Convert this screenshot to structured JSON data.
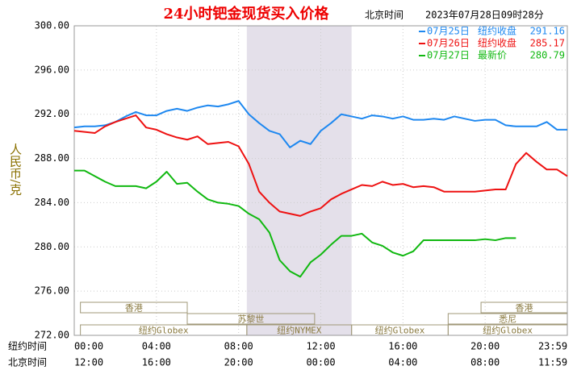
{
  "chart_data": {
    "type": "line",
    "title": "24小时钯金现货买入价格",
    "time_zone": "北京时间",
    "timestamp": "2023年07月28日09时28分",
    "y_label": "人民币/克",
    "x_row_labels": [
      "纽约时间",
      "北京时间"
    ],
    "x": [
      0,
      0.5,
      1,
      1.5,
      2,
      2.5,
      3,
      3.5,
      4,
      4.5,
      5,
      5.5,
      6,
      6.5,
      7,
      7.5,
      8,
      8.5,
      9,
      9.5,
      10,
      10.5,
      11,
      11.5,
      12,
      12.5,
      13,
      13.5,
      14,
      14.5,
      15,
      15.5,
      16,
      16.5,
      17,
      17.5,
      18,
      18.5,
      19,
      19.5,
      20,
      20.5,
      21,
      21.5,
      22,
      22.5,
      23,
      23.5,
      24
    ],
    "series": [
      {
        "name": "07月25日",
        "label": "纽约收盘",
        "value": 291.16,
        "color": "#1e88f0",
        "values": [
          290.8,
          290.9,
          290.9,
          291.0,
          291.3,
          291.8,
          292.2,
          291.9,
          291.9,
          292.3,
          292.5,
          292.3,
          292.6,
          292.8,
          292.7,
          292.9,
          293.2,
          292.0,
          291.2,
          290.5,
          290.2,
          289.0,
          289.6,
          289.3,
          290.5,
          291.2,
          292.0,
          291.8,
          291.6,
          291.9,
          291.8,
          291.6,
          291.8,
          291.5,
          291.5,
          291.6,
          291.5,
          291.8,
          291.6,
          291.4,
          291.5,
          291.5,
          291.0,
          290.9,
          290.9,
          290.9,
          291.3,
          290.6,
          290.6
        ]
      },
      {
        "name": "07月26日",
        "label": "纽约收盘",
        "value": 285.17,
        "color": "#ee1111",
        "values": [
          290.5,
          290.4,
          290.3,
          290.9,
          291.3,
          291.6,
          291.9,
          290.8,
          290.6,
          290.2,
          289.9,
          289.7,
          290.0,
          289.3,
          289.4,
          289.5,
          289.1,
          287.5,
          285.0,
          284.0,
          283.2,
          283.0,
          282.8,
          283.2,
          283.5,
          284.3,
          284.8,
          285.2,
          285.6,
          285.5,
          285.9,
          285.6,
          285.7,
          285.4,
          285.5,
          285.4,
          285.0,
          285.0,
          285.0,
          285.0,
          285.1,
          285.2,
          285.2,
          287.5,
          288.5,
          287.7,
          287.0,
          287.0,
          286.4
        ]
      },
      {
        "name": "07月27日",
        "label": "最新价",
        "value": 280.79,
        "color": "#10b810",
        "values": [
          286.9,
          286.9,
          286.4,
          285.9,
          285.5,
          285.5,
          285.5,
          285.3,
          285.9,
          286.8,
          285.7,
          285.8,
          285.0,
          284.3,
          284.0,
          283.9,
          283.7,
          283.0,
          282.5,
          281.3,
          278.8,
          277.8,
          277.3,
          278.6,
          279.3,
          280.2,
          281.0,
          281.0,
          281.2,
          280.4,
          280.1,
          279.5,
          279.2,
          279.6,
          280.6,
          280.6,
          280.6,
          280.6,
          280.6,
          280.6,
          280.7,
          280.6,
          280.8,
          280.8,
          null,
          null,
          null,
          null,
          null
        ]
      }
    ],
    "xlim": [
      0,
      24
    ],
    "xticks": [
      {
        "value": 0,
        "label": "00:00"
      },
      {
        "value": 4,
        "label": "04:00"
      },
      {
        "value": 8,
        "label": "08:00"
      },
      {
        "value": 12,
        "label": "12:00"
      },
      {
        "value": 16,
        "label": "16:00"
      },
      {
        "value": 20,
        "label": "20:00"
      },
      {
        "value": 24,
        "label": "23:59"
      }
    ],
    "x2ticks": [
      {
        "value": 0,
        "label": "12:00"
      },
      {
        "value": 4,
        "label": "16:00"
      },
      {
        "value": 8,
        "label": "20:00"
      },
      {
        "value": 12,
        "label": "00:00"
      },
      {
        "value": 16,
        "label": "04:00"
      },
      {
        "value": 20,
        "label": "08:00"
      },
      {
        "value": 24,
        "label": "11:59"
      }
    ],
    "ylim": [
      272,
      300
    ],
    "yticks": [
      {
        "value": 272,
        "label": "272.00"
      },
      {
        "value": 276,
        "label": "276.00"
      },
      {
        "value": 280,
        "label": "280.00"
      },
      {
        "value": 284,
        "label": "284.00"
      },
      {
        "value": 288,
        "label": "288.00"
      },
      {
        "value": 292,
        "label": "292.00"
      },
      {
        "value": 296,
        "label": "296.00"
      },
      {
        "value": 300,
        "label": "300.00"
      }
    ],
    "grid": true,
    "highlight": [
      8.4,
      13.5
    ],
    "sessions": [
      [
        {
          "label": "香港",
          "x": [
            0.3,
            5.5
          ]
        },
        {
          "label": "香港",
          "x": [
            19.8,
            24
          ]
        }
      ],
      [
        {
          "label": "苏黎世",
          "x": [
            5.5,
            11.7
          ]
        },
        {
          "label": "悉尼",
          "x": [
            18.2,
            24
          ]
        }
      ],
      [
        {
          "label": "纽约Globex",
          "x": [
            0.3,
            8.4
          ]
        },
        {
          "label": "纽约NYMEX",
          "x": [
            8.4,
            13.5
          ]
        },
        {
          "label": "纽约Globex",
          "x": [
            13.5,
            18.2
          ]
        },
        {
          "label": "纽约Globex",
          "x": [
            18.2,
            24
          ]
        }
      ]
    ]
  }
}
